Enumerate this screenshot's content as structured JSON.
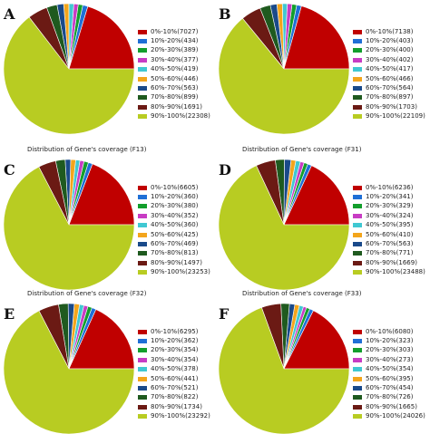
{
  "colors": [
    "#c00000",
    "#1f6fd6",
    "#139e2c",
    "#c83cc4",
    "#40c8d2",
    "#f3a51c",
    "#1a4a8a",
    "#1f5a1f",
    "#6b1a14",
    "#b8cc22"
  ],
  "chart_data": [
    {
      "type": "pie",
      "panel": "A",
      "title": "",
      "categories": [
        "0%-10%",
        "10%-20%",
        "20%-30%",
        "30%-40%",
        "40%-50%",
        "50%-60%",
        "60%-70%",
        "70%-80%",
        "80%-90%",
        "90%-100%"
      ],
      "values": [
        7027,
        434,
        389,
        377,
        419,
        446,
        563,
        899,
        1691,
        22308
      ],
      "legend": [
        "0%-10%(7027)",
        "10%-20%(434)",
        "20%-30%(389)",
        "30%-40%(377)",
        "40%-50%(419)",
        "50%-60%(446)",
        "60%-70%(563)",
        "70%-80%(899)",
        "80%-90%(1691)",
        "90%-100%(22308)"
      ]
    },
    {
      "type": "pie",
      "panel": "B",
      "title": "",
      "categories": [
        "0%-10%",
        "10%-20%",
        "20%-30%",
        "30%-40%",
        "40%-50%",
        "50%-60%",
        "60%-70%",
        "70%-80%",
        "80%-90%",
        "90%-100%"
      ],
      "values": [
        7138,
        403,
        400,
        402,
        417,
        466,
        564,
        897,
        1703,
        22109
      ],
      "legend": [
        "0%-10%(7138)",
        "10%-20%(403)",
        "20%-30%(400)",
        "30%-40%(402)",
        "40%-50%(417)",
        "50%-60%(466)",
        "60%-70%(564)",
        "70%-80%(897)",
        "80%-90%(1703)",
        "90%-100%(22109)"
      ]
    },
    {
      "type": "pie",
      "panel": "C",
      "title": "Distribution of Gene's coverage (F13)",
      "categories": [
        "0%-10%",
        "10%-20%",
        "20%-30%",
        "30%-40%",
        "40%-50%",
        "50%-60%",
        "60%-70%",
        "70%-80%",
        "80%-90%",
        "90%-100%"
      ],
      "values": [
        6605,
        360,
        380,
        352,
        360,
        425,
        469,
        813,
        1497,
        23253
      ],
      "legend": [
        "0%-10%(6605)",
        "10%-20%(360)",
        "20%-30%(380)",
        "30%-40%(352)",
        "40%-50%(360)",
        "50%-60%(425)",
        "60%-70%(469)",
        "70%-80%(813)",
        "80%-90%(1497)",
        "90%-100%(23253)"
      ]
    },
    {
      "type": "pie",
      "panel": "D",
      "title": "Distribution of Gene's coverage (F31)",
      "categories": [
        "0%-10%",
        "10%-20%",
        "20%-30%",
        "30%-40%",
        "40%-50%",
        "50%-60%",
        "60%-70%",
        "70%-80%",
        "80%-90%",
        "90%-100%"
      ],
      "values": [
        6236,
        341,
        329,
        324,
        395,
        410,
        563,
        771,
        1669,
        23488
      ],
      "legend": [
        "0%-10%(6236)",
        "10%-20%(341)",
        "20%-30%(329)",
        "30%-40%(324)",
        "40%-50%(395)",
        "50%-60%(410)",
        "60%-70%(563)",
        "70%-80%(771)",
        "80%-90%(1669)",
        "90%-100%(23488)"
      ]
    },
    {
      "type": "pie",
      "panel": "E",
      "title": "Distribution of Gene's coverage (F32)",
      "categories": [
        "0%-10%",
        "10%-20%",
        "20%-30%",
        "30%-40%",
        "40%-50%",
        "50%-60%",
        "60%-70%",
        "70%-80%",
        "80%-90%",
        "90%-100%"
      ],
      "values": [
        6295,
        362,
        354,
        354,
        378,
        441,
        521,
        822,
        1734,
        23292
      ],
      "legend": [
        "0%-10%(6295)",
        "10%-20%(362)",
        "20%-30%(354)",
        "30%-40%(354)",
        "40%-50%(378)",
        "50%-60%(441)",
        "60%-70%(521)",
        "70%-80%(822)",
        "80%-90%(1734)",
        "90%-100%(23292)"
      ]
    },
    {
      "type": "pie",
      "panel": "F",
      "title": "Distribution of Gene's coverage (F33)",
      "categories": [
        "0%-10%",
        "10%-20%",
        "20%-30%",
        "30%-40%",
        "40%-50%",
        "50%-60%",
        "60%-70%",
        "70%-80%",
        "80%-90%",
        "90%-100%"
      ],
      "values": [
        6080,
        323,
        303,
        273,
        354,
        395,
        454,
        726,
        1665,
        24026
      ],
      "legend": [
        "0%-10%(6080)",
        "10%-20%(323)",
        "20%-30%(303)",
        "30%-40%(273)",
        "40%-50%(354)",
        "50%-60%(395)",
        "60%-70%(454)",
        "70%-80%(726)",
        "80%-90%(1665)",
        "90%-100%(24026)"
      ]
    }
  ]
}
